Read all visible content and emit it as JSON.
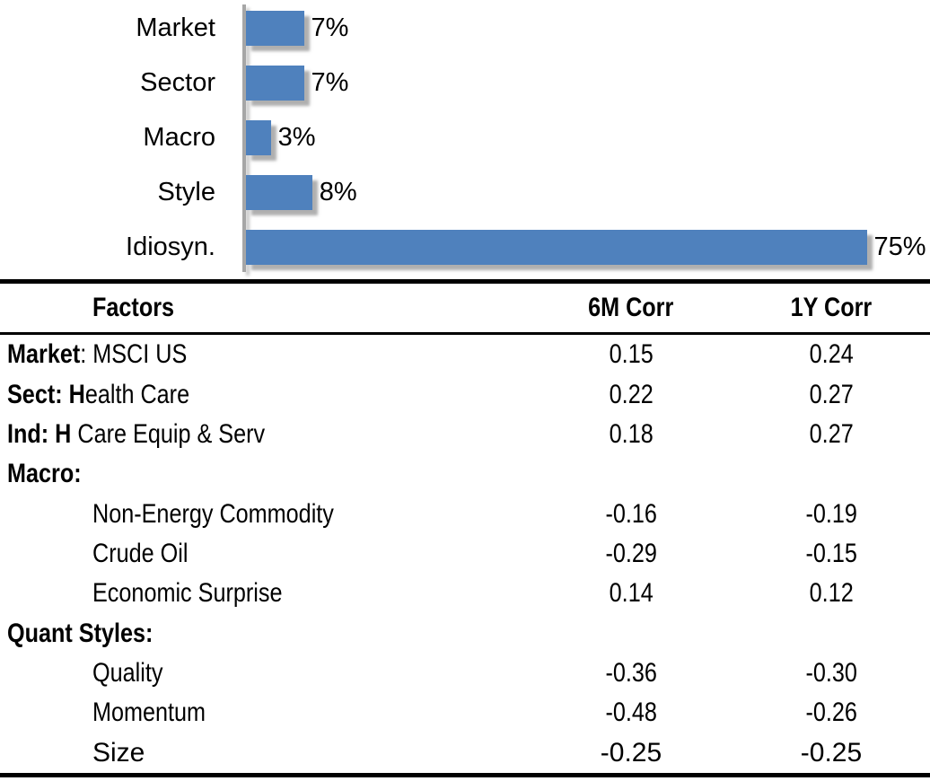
{
  "colors": {
    "bar_fill": "#4f81bd",
    "axis_line": "#a6a6a6",
    "text": "#000000",
    "rule": "#000000"
  },
  "chart_data": {
    "type": "bar",
    "orientation": "horizontal",
    "title": "",
    "xlabel": "",
    "ylabel": "",
    "xlim": [
      0,
      75
    ],
    "grid": false,
    "legend": false,
    "data_label_position": "outside-end",
    "categories": [
      "Market",
      "Sector",
      "Macro",
      "Style",
      "Idiosyn."
    ],
    "values": [
      7,
      7,
      3,
      8,
      75
    ],
    "data_labels": [
      "7%",
      "7%",
      "3%",
      "8%",
      "75%"
    ]
  },
  "table": {
    "headers": {
      "factors": "Factors",
      "corr_6m": "6M Corr",
      "corr_1y": "1Y Corr"
    },
    "rows": [
      {
        "label_parts": [
          {
            "text": "Market",
            "bold": true
          },
          {
            "text": ": MSCI US",
            "bold": false
          }
        ],
        "label_plain": "Market: MSCI US",
        "indent": false,
        "narrow": true,
        "corr_6m": "0.15",
        "corr_1y": "0.24"
      },
      {
        "label_parts": [
          {
            "text": "Sect: H",
            "bold": true
          },
          {
            "text": "ealth Care",
            "bold": false
          }
        ],
        "label_plain": "Sect: Health Care",
        "indent": false,
        "narrow": true,
        "corr_6m": "0.22",
        "corr_1y": "0.27"
      },
      {
        "label_parts": [
          {
            "text": "Ind: H",
            "bold": true
          },
          {
            "text": " Care Equip & Serv",
            "bold": false
          }
        ],
        "label_plain": "Ind: H Care Equip & Serv",
        "indent": false,
        "narrow": true,
        "corr_6m": "0.18",
        "corr_1y": "0.27"
      },
      {
        "label_parts": [
          {
            "text": "Macro:",
            "bold": true
          }
        ],
        "label_plain": "Macro:",
        "indent": false,
        "narrow": true,
        "corr_6m": "",
        "corr_1y": ""
      },
      {
        "label_parts": [
          {
            "text": "Non-Energy Commodity",
            "bold": false
          }
        ],
        "label_plain": "Non-Energy Commodity",
        "indent": true,
        "narrow": true,
        "corr_6m": "-0.16",
        "corr_1y": "-0.19"
      },
      {
        "label_parts": [
          {
            "text": "Crude Oil",
            "bold": false
          }
        ],
        "label_plain": "Crude Oil",
        "indent": true,
        "narrow": true,
        "corr_6m": "-0.29",
        "corr_1y": "-0.15"
      },
      {
        "label_parts": [
          {
            "text": "Economic Surprise",
            "bold": false
          }
        ],
        "label_plain": "Economic Surprise",
        "indent": true,
        "narrow": true,
        "corr_6m": "0.14",
        "corr_1y": "0.12"
      },
      {
        "label_parts": [
          {
            "text": "Quant Styles:",
            "bold": true
          }
        ],
        "label_plain": "Quant Styles:",
        "indent": false,
        "narrow": true,
        "corr_6m": "",
        "corr_1y": ""
      },
      {
        "label_parts": [
          {
            "text": "Quality",
            "bold": false
          }
        ],
        "label_plain": "Quality",
        "indent": true,
        "narrow": true,
        "corr_6m": "-0.36",
        "corr_1y": "-0.30"
      },
      {
        "label_parts": [
          {
            "text": "Momentum",
            "bold": false
          }
        ],
        "label_plain": "Momentum",
        "indent": true,
        "narrow": true,
        "corr_6m": "-0.48",
        "corr_1y": "-0.26"
      },
      {
        "label_parts": [
          {
            "text": "Size",
            "bold": false
          }
        ],
        "label_plain": "Size",
        "indent": true,
        "narrow": false,
        "corr_6m": "-0.25",
        "corr_1y": "-0.25"
      }
    ]
  }
}
